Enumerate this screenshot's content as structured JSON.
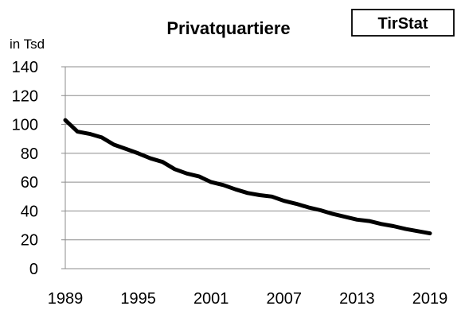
{
  "chart_data": {
    "type": "line",
    "title": "Privatquartiere",
    "source_badge": "TirStat",
    "ylabel": "in Tsd",
    "xlabel": "",
    "ylim": [
      0,
      140
    ],
    "y_ticks": [
      "0",
      "20",
      "40",
      "60",
      "80",
      "100",
      "120",
      "140"
    ],
    "xlim": [
      1989,
      2019
    ],
    "x_ticks": [
      "1989",
      "1995",
      "2001",
      "2007",
      "2013",
      "2019"
    ],
    "grid": true,
    "legend": "none",
    "line_color": "#000000",
    "x": [
      1989,
      1990,
      1991,
      1992,
      1993,
      1994,
      1995,
      1996,
      1997,
      1998,
      1999,
      2000,
      2001,
      2002,
      2003,
      2004,
      2005,
      2006,
      2007,
      2008,
      2009,
      2010,
      2011,
      2012,
      2013,
      2014,
      2015,
      2016,
      2017,
      2018,
      2019
    ],
    "series": [
      {
        "values": [
          103,
          95,
          93.5,
          91,
          86,
          83,
          80,
          76.5,
          74,
          69,
          66,
          64,
          60,
          58,
          55,
          52.5,
          51,
          50,
          47,
          45,
          42.5,
          40.5,
          38,
          36,
          34,
          33,
          31,
          29.5,
          27.5,
          26,
          24.5
        ]
      }
    ]
  }
}
